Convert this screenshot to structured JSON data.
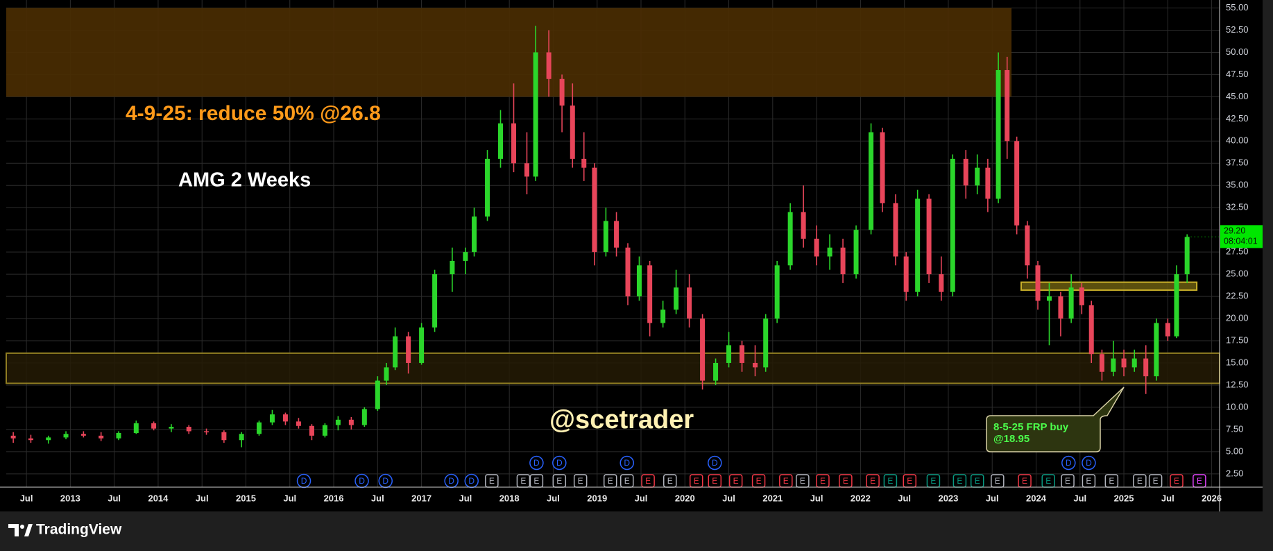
{
  "chart_data": {
    "type": "candlestick",
    "x": [
      2012.35,
      2012.55,
      2012.75,
      2012.95,
      2013.15,
      2013.35,
      2013.55,
      2013.75,
      2013.95,
      2014.15,
      2014.35,
      2014.55,
      2014.75,
      2014.95,
      2015.15,
      2015.3,
      2015.45,
      2015.6,
      2015.75,
      2015.9,
      2016.05,
      2016.2,
      2016.35,
      2016.5,
      2016.6,
      2016.7,
      2016.85,
      2017.0,
      2017.15,
      2017.35,
      2017.5,
      2017.6,
      2017.75,
      2017.9,
      2018.05,
      2018.2,
      2018.3,
      2018.45,
      2018.6,
      2018.72,
      2018.85,
      2018.97,
      2019.1,
      2019.22,
      2019.35,
      2019.48,
      2019.6,
      2019.75,
      2019.9,
      2020.05,
      2020.2,
      2020.35,
      2020.5,
      2020.65,
      2020.8,
      2020.92,
      2021.05,
      2021.2,
      2021.35,
      2021.5,
      2021.65,
      2021.8,
      2021.95,
      2022.12,
      2022.25,
      2022.4,
      2022.52,
      2022.65,
      2022.78,
      2022.92,
      2023.05,
      2023.2,
      2023.33,
      2023.45,
      2023.57,
      2023.67,
      2023.78,
      2023.9,
      2024.02,
      2024.15,
      2024.28,
      2024.4,
      2024.52,
      2024.63,
      2024.75,
      2024.88,
      2025.0,
      2025.12,
      2025.25,
      2025.37,
      2025.5,
      2025.6,
      2025.72
    ],
    "open": [
      6.8,
      6.5,
      6.3,
      6.6,
      7.0,
      6.8,
      6.5,
      7.1,
      8.2,
      7.6,
      7.8,
      7.3,
      7.2,
      6.3,
      7.0,
      8.3,
      9.2,
      8.4,
      7.9,
      6.8,
      8.0,
      8.6,
      8.0,
      9.8,
      13.0,
      14.5,
      18.0,
      15.0,
      19.0,
      25.0,
      26.5,
      27.5,
      31.5,
      38.0,
      42.0,
      37.5,
      36.0,
      50.0,
      47.0,
      44.0,
      38.0,
      37.0,
      27.5,
      31.0,
      28.0,
      22.5,
      26.0,
      19.5,
      21.0,
      23.5,
      20.0,
      13.0,
      15.0,
      17.0,
      15.0,
      14.5,
      20.0,
      26.0,
      32.0,
      29.0,
      27.0,
      28.0,
      25.0,
      30.0,
      41.0,
      33.0,
      27.0,
      23.0,
      33.5,
      25.0,
      23.0,
      38.0,
      35.0,
      37.0,
      33.5,
      48.0,
      40.0,
      30.5,
      26.0,
      22.0,
      22.5,
      20.0,
      23.5,
      21.5,
      16.0,
      14.0,
      15.5,
      14.5,
      15.5,
      13.5,
      19.5,
      18.0,
      25.0
    ],
    "high": [
      7.2,
      6.9,
      6.8,
      7.3,
      7.3,
      7.2,
      7.3,
      8.5,
      8.4,
      8.1,
      8.0,
      7.6,
      7.4,
      7.2,
      8.5,
      9.7,
      9.4,
      8.8,
      8.1,
      8.2,
      9.0,
      8.9,
      10.0,
      13.5,
      15.0,
      19.0,
      18.5,
      19.5,
      25.5,
      28.0,
      28.0,
      32.5,
      39.0,
      43.5,
      46.5,
      41.0,
      53.0,
      52.5,
      47.5,
      46.5,
      41.0,
      37.5,
      32.5,
      32.0,
      28.5,
      27.0,
      26.5,
      22.0,
      25.5,
      25.0,
      20.5,
      15.5,
      18.5,
      17.5,
      17.0,
      20.5,
      26.5,
      33.0,
      35.0,
      30.5,
      29.5,
      29.0,
      30.5,
      42.0,
      41.5,
      34.0,
      27.5,
      34.5,
      34.0,
      27.0,
      38.5,
      39.0,
      38.5,
      38.0,
      50.0,
      49.5,
      40.5,
      31.0,
      26.5,
      24.0,
      23.0,
      25.0,
      24.0,
      22.0,
      16.5,
      17.5,
      16.5,
      16.5,
      17.0,
      20.0,
      20.0,
      26.0,
      29.5
    ],
    "low": [
      6.0,
      6.0,
      5.9,
      6.4,
      6.6,
      6.2,
      6.3,
      7.0,
      7.4,
      7.2,
      7.0,
      6.9,
      6.0,
      5.5,
      6.8,
      8.0,
      8.0,
      7.6,
      6.3,
      6.6,
      7.4,
      7.5,
      7.8,
      9.6,
      12.5,
      14.2,
      13.8,
      14.8,
      18.5,
      23.0,
      25.0,
      27.0,
      31.0,
      37.0,
      36.5,
      34.0,
      35.5,
      45.0,
      41.0,
      37.0,
      35.5,
      26.0,
      27.0,
      27.0,
      21.5,
      22.0,
      18.0,
      19.0,
      20.5,
      19.0,
      12.0,
      12.5,
      14.5,
      14.0,
      13.5,
      14.0,
      19.5,
      25.5,
      28.0,
      26.0,
      25.5,
      24.0,
      24.5,
      29.5,
      32.0,
      26.0,
      22.0,
      22.5,
      24.0,
      22.0,
      22.5,
      33.5,
      34.0,
      32.0,
      33.0,
      38.0,
      29.5,
      24.5,
      21.0,
      17.0,
      18.0,
      19.5,
      20.5,
      15.0,
      13.0,
      13.5,
      13.5,
      14.0,
      11.5,
      13.0,
      17.5,
      17.8,
      24.0
    ],
    "close": [
      6.5,
      6.3,
      6.6,
      7.0,
      6.8,
      6.5,
      7.1,
      8.2,
      7.6,
      7.8,
      7.3,
      7.2,
      6.3,
      7.0,
      8.3,
      9.2,
      8.4,
      7.9,
      6.8,
      8.0,
      8.6,
      8.0,
      9.8,
      13.0,
      14.5,
      18.0,
      15.0,
      19.0,
      25.0,
      26.5,
      27.5,
      31.5,
      38.0,
      42.0,
      37.5,
      36.0,
      50.0,
      47.0,
      44.0,
      38.0,
      37.0,
      27.5,
      31.0,
      28.0,
      22.5,
      26.0,
      19.5,
      21.0,
      23.5,
      20.0,
      13.0,
      15.0,
      17.0,
      15.0,
      14.5,
      20.0,
      26.0,
      32.0,
      29.0,
      27.0,
      28.0,
      25.0,
      30.0,
      41.0,
      33.0,
      27.0,
      23.0,
      33.5,
      25.0,
      23.0,
      38.0,
      35.0,
      37.0,
      33.5,
      48.0,
      40.0,
      30.5,
      26.0,
      22.0,
      22.5,
      20.0,
      23.5,
      21.5,
      16.0,
      14.0,
      15.5,
      14.5,
      15.5,
      13.5,
      19.5,
      18.0,
      25.0,
      29.2
    ],
    "up_color": "#2bd62b",
    "down_color": "#e8455a",
    "xlim": [
      2012.27,
      2026.09
    ],
    "xticks": [
      {
        "value": 2012.5,
        "label": "Jul"
      },
      2013,
      {
        "value": 2013.5,
        "label": "Jul"
      },
      2014,
      {
        "value": 2014.5,
        "label": "Jul"
      },
      2015,
      {
        "value": 2015.5,
        "label": "Jul"
      },
      2016,
      {
        "value": 2016.5,
        "label": "Jul"
      },
      2017,
      {
        "value": 2017.5,
        "label": "Jul"
      },
      2018,
      {
        "value": 2018.5,
        "label": "Jul"
      },
      2019,
      {
        "value": 2019.5,
        "label": "Jul"
      },
      2020,
      {
        "value": 2020.5,
        "label": "Jul"
      },
      2021,
      {
        "value": 2021.5,
        "label": "Jul"
      },
      2022,
      {
        "value": 2022.5,
        "label": "Jul"
      },
      2023,
      {
        "value": 2023.5,
        "label": "Jul"
      },
      2024,
      {
        "value": 2024.5,
        "label": "Jul"
      },
      2025,
      {
        "value": 2025.5,
        "label": "Jul"
      },
      2026
    ],
    "ylim": [
      1.0,
      55.9
    ],
    "yticks": [
      {
        "value": 2.5,
        "label": "2.50"
      },
      {
        "value": 5,
        "label": "5.00"
      },
      {
        "value": 7.5,
        "label": "7.50"
      },
      {
        "value": 10,
        "label": "10.00"
      },
      {
        "value": 12.5,
        "label": "12.50"
      },
      {
        "value": 15,
        "label": "15.00"
      },
      {
        "value": 17.5,
        "label": "17.50"
      },
      {
        "value": 20,
        "label": "20.00"
      },
      {
        "value": 22.5,
        "label": "22.50"
      },
      {
        "value": 25,
        "label": "25.00"
      },
      {
        "value": 27.5,
        "label": "27.50"
      },
      {
        "value": 30,
        "label": "30.00"
      },
      {
        "value": 32.5,
        "label": "32.50"
      },
      {
        "value": 35,
        "label": "35.00"
      },
      {
        "value": 37.5,
        "label": "37.50"
      },
      {
        "value": 40,
        "label": "40.00"
      },
      {
        "value": 42.5,
        "label": "42.50"
      },
      {
        "value": 45,
        "label": "45.00"
      },
      {
        "value": 47.5,
        "label": "47.50"
      },
      {
        "value": 50,
        "label": "50.00"
      },
      {
        "value": 52.5,
        "label": "52.50"
      },
      {
        "value": 55,
        "label": "55.00"
      }
    ],
    "grid": true,
    "zones": [
      {
        "x": [
          2012.27,
          2023.72
        ],
        "y": [
          45,
          55
        ],
        "color": "#4a2c02"
      },
      {
        "x": [
          2012.27,
          2026.09
        ],
        "y": [
          12.7,
          16.1
        ],
        "color": "#241b05",
        "border": "#8f7d22"
      },
      {
        "x": [
          2023.83,
          2025.83
        ],
        "y": [
          23.2,
          24.1
        ],
        "color": "#6b5d10",
        "border": "#c9b02a"
      }
    ],
    "last_price": {
      "value": 29.2,
      "label": "29.20",
      "countdown": "08:04:01",
      "color": "#00e600"
    },
    "annotations": {
      "note": "4-9-25: reduce 50% @26.8",
      "symbol": "AMG 2 Weeks",
      "watermark": "@scetrader",
      "callout": [
        "8-5-25 FRP buy",
        "@18.95"
      ]
    },
    "dividends": {
      "label": "D",
      "color": "#2962ff",
      "x": [
        2015.66,
        2016.32,
        2016.59,
        2017.34,
        2017.57,
        2018.31,
        2018.57,
        2019.34,
        2020.34,
        2024.37,
        2024.6
      ]
    },
    "earnings": {
      "label": "E",
      "x": [
        2017.8,
        2018.16,
        2018.31,
        2018.57,
        2018.81,
        2019.15,
        2019.34,
        2019.58,
        2019.83,
        2020.13,
        2020.34,
        2020.58,
        2020.84,
        2021.15,
        2021.34,
        2021.57,
        2021.83,
        2022.14,
        2022.34,
        2022.56,
        2022.83,
        2023.13,
        2023.33,
        2023.56,
        2023.87,
        2024.14,
        2024.36,
        2024.6,
        2024.86,
        2025.18,
        2025.36,
        2025.6,
        2025.86
      ],
      "colors": [
        "#b2b5be",
        "#b2b5be",
        "#b2b5be",
        "#b2b5be",
        "#b2b5be",
        "#b2b5be",
        "#b2b5be",
        "#f23645",
        "#b2b5be",
        "#f23645",
        "#f23645",
        "#f23645",
        "#f23645",
        "#f23645",
        "#b2b5be",
        "#f23645",
        "#f23645",
        "#f23645",
        "#089981",
        "#f23645",
        "#089981",
        "#089981",
        "#089981",
        "#b2b5be",
        "#f23645",
        "#089981",
        "#b2b5be",
        "#b2b5be",
        "#b2b5be",
        "#b2b5be",
        "#b2b5be",
        "#f23645",
        "#e040fb"
      ]
    }
  },
  "brand": "TradingView"
}
